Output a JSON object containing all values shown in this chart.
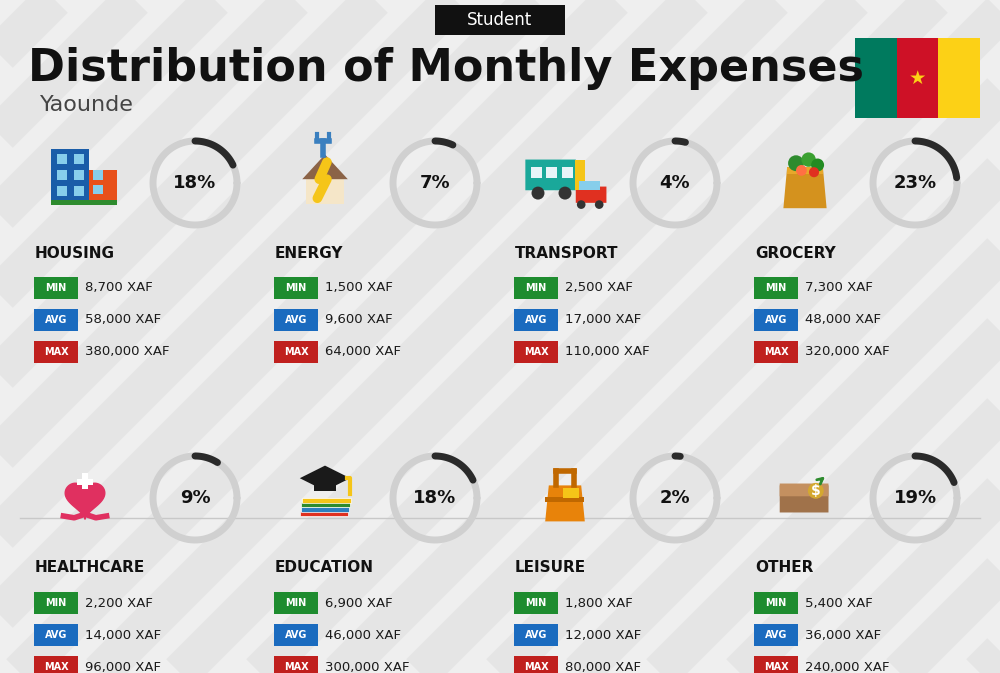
{
  "title": "Distribution of Monthly Expenses",
  "subtitle": "Yaounde",
  "category_label": "Student",
  "bg_color": "#efefef",
  "categories": [
    {
      "name": "HOUSING",
      "pct": 18,
      "min_val": "8,700 XAF",
      "avg_val": "58,000 XAF",
      "max_val": "380,000 XAF",
      "row": 0,
      "col": 0
    },
    {
      "name": "ENERGY",
      "pct": 7,
      "min_val": "1,500 XAF",
      "avg_val": "9,600 XAF",
      "max_val": "64,000 XAF",
      "row": 0,
      "col": 1
    },
    {
      "name": "TRANSPORT",
      "pct": 4,
      "min_val": "2,500 XAF",
      "avg_val": "17,000 XAF",
      "max_val": "110,000 XAF",
      "row": 0,
      "col": 2
    },
    {
      "name": "GROCERY",
      "pct": 23,
      "min_val": "7,300 XAF",
      "avg_val": "48,000 XAF",
      "max_val": "320,000 XAF",
      "row": 0,
      "col": 3
    },
    {
      "name": "HEALTHCARE",
      "pct": 9,
      "min_val": "2,200 XAF",
      "avg_val": "14,000 XAF",
      "max_val": "96,000 XAF",
      "row": 1,
      "col": 0
    },
    {
      "name": "EDUCATION",
      "pct": 18,
      "min_val": "6,900 XAF",
      "avg_val": "46,000 XAF",
      "max_val": "300,000 XAF",
      "row": 1,
      "col": 1
    },
    {
      "name": "LEISURE",
      "pct": 2,
      "min_val": "1,800 XAF",
      "avg_val": "12,000 XAF",
      "max_val": "80,000 XAF",
      "row": 1,
      "col": 2
    },
    {
      "name": "OTHER",
      "pct": 19,
      "min_val": "5,400 XAF",
      "avg_val": "36,000 XAF",
      "max_val": "240,000 XAF",
      "row": 1,
      "col": 3
    }
  ],
  "min_color": "#1e8c2f",
  "avg_color": "#1a6bbf",
  "max_color": "#c0201e",
  "arc_dark": "#2a2a2a",
  "arc_light": "#d0d0d0",
  "cameroon_green": "#007a5e",
  "cameroon_red": "#ce1126",
  "cameroon_yellow": "#fcd116",
  "stripe_color": "#e5e5e5",
  "title_color": "#111111",
  "name_color": "#111111",
  "value_color": "#1a1a1a"
}
